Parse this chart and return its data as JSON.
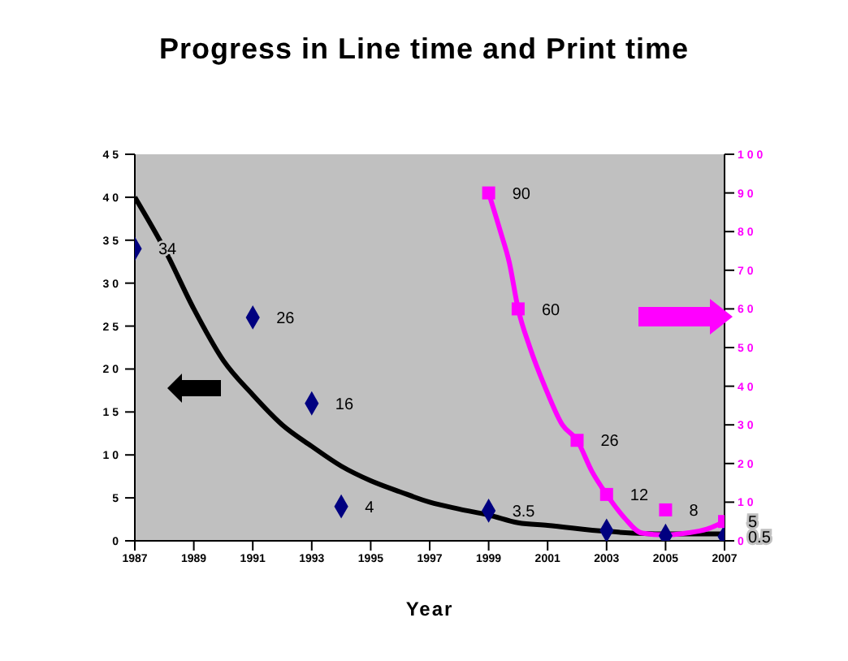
{
  "chart_data": {
    "type": "line",
    "title": "Progress in Line time and Print time",
    "xlabel": "Year",
    "xlim": [
      1987,
      2007
    ],
    "xticks": [
      1987,
      1989,
      1991,
      1993,
      1995,
      1997,
      1999,
      2001,
      2003,
      2005,
      2007
    ],
    "ylim": [
      0,
      45
    ],
    "yticks": [
      0,
      5,
      10,
      15,
      20,
      25,
      30,
      35,
      40,
      45
    ],
    "y2lim": [
      0,
      100
    ],
    "y2ticks": [
      0,
      10,
      20,
      30,
      40,
      50,
      60,
      70,
      80,
      90,
      100
    ],
    "series": [
      {
        "color": "#000000",
        "marker": "none",
        "x": [
          1987,
          1988,
          1989,
          1990,
          1991,
          1992,
          1993,
          1994,
          1995,
          1996,
          1997,
          1998,
          1999,
          2000,
          2001,
          2003,
          2005,
          2007
        ],
        "values": [
          40,
          34,
          27,
          21,
          17,
          13.5,
          11,
          8.7,
          7,
          5.7,
          4.5,
          3.7,
          3,
          2.1,
          1.8,
          1.1,
          0.8,
          0.8
        ]
      },
      {
        "type": "scatter",
        "color": "#000080",
        "marker": "diamond",
        "x": [
          1987,
          1991,
          1993,
          1994,
          1999,
          2003,
          2005,
          2007
        ],
        "values": [
          34,
          26,
          16,
          4,
          3.5,
          1.2,
          0.6,
          0.5
        ],
        "value_labels": [
          "34",
          "26",
          "16",
          "4",
          "3.5",
          null,
          null,
          "0.5"
        ]
      },
      {
        "axis": "y2",
        "color": "#ff00ff",
        "marker": "none",
        "x": [
          1999,
          1999.4,
          1999.7,
          2000,
          2000.4,
          2000.9,
          2001.5,
          2002,
          2002.5,
          2003,
          2003.6,
          2004.2,
          2005,
          2005.7,
          2006.4,
          2007
        ],
        "values": [
          90,
          80,
          72,
          60,
          50,
          40,
          30,
          26,
          18,
          12,
          6,
          2,
          1.5,
          2,
          3,
          5
        ]
      },
      {
        "type": "scatter",
        "axis": "y2",
        "color": "#ff00ff",
        "marker": "square",
        "x": [
          1999,
          2000,
          2002,
          2003,
          2005,
          2007
        ],
        "values": [
          90,
          60,
          26,
          12,
          8,
          5
        ],
        "value_labels": [
          "90",
          "60",
          "26",
          "12",
          "8",
          "5"
        ]
      }
    ]
  }
}
